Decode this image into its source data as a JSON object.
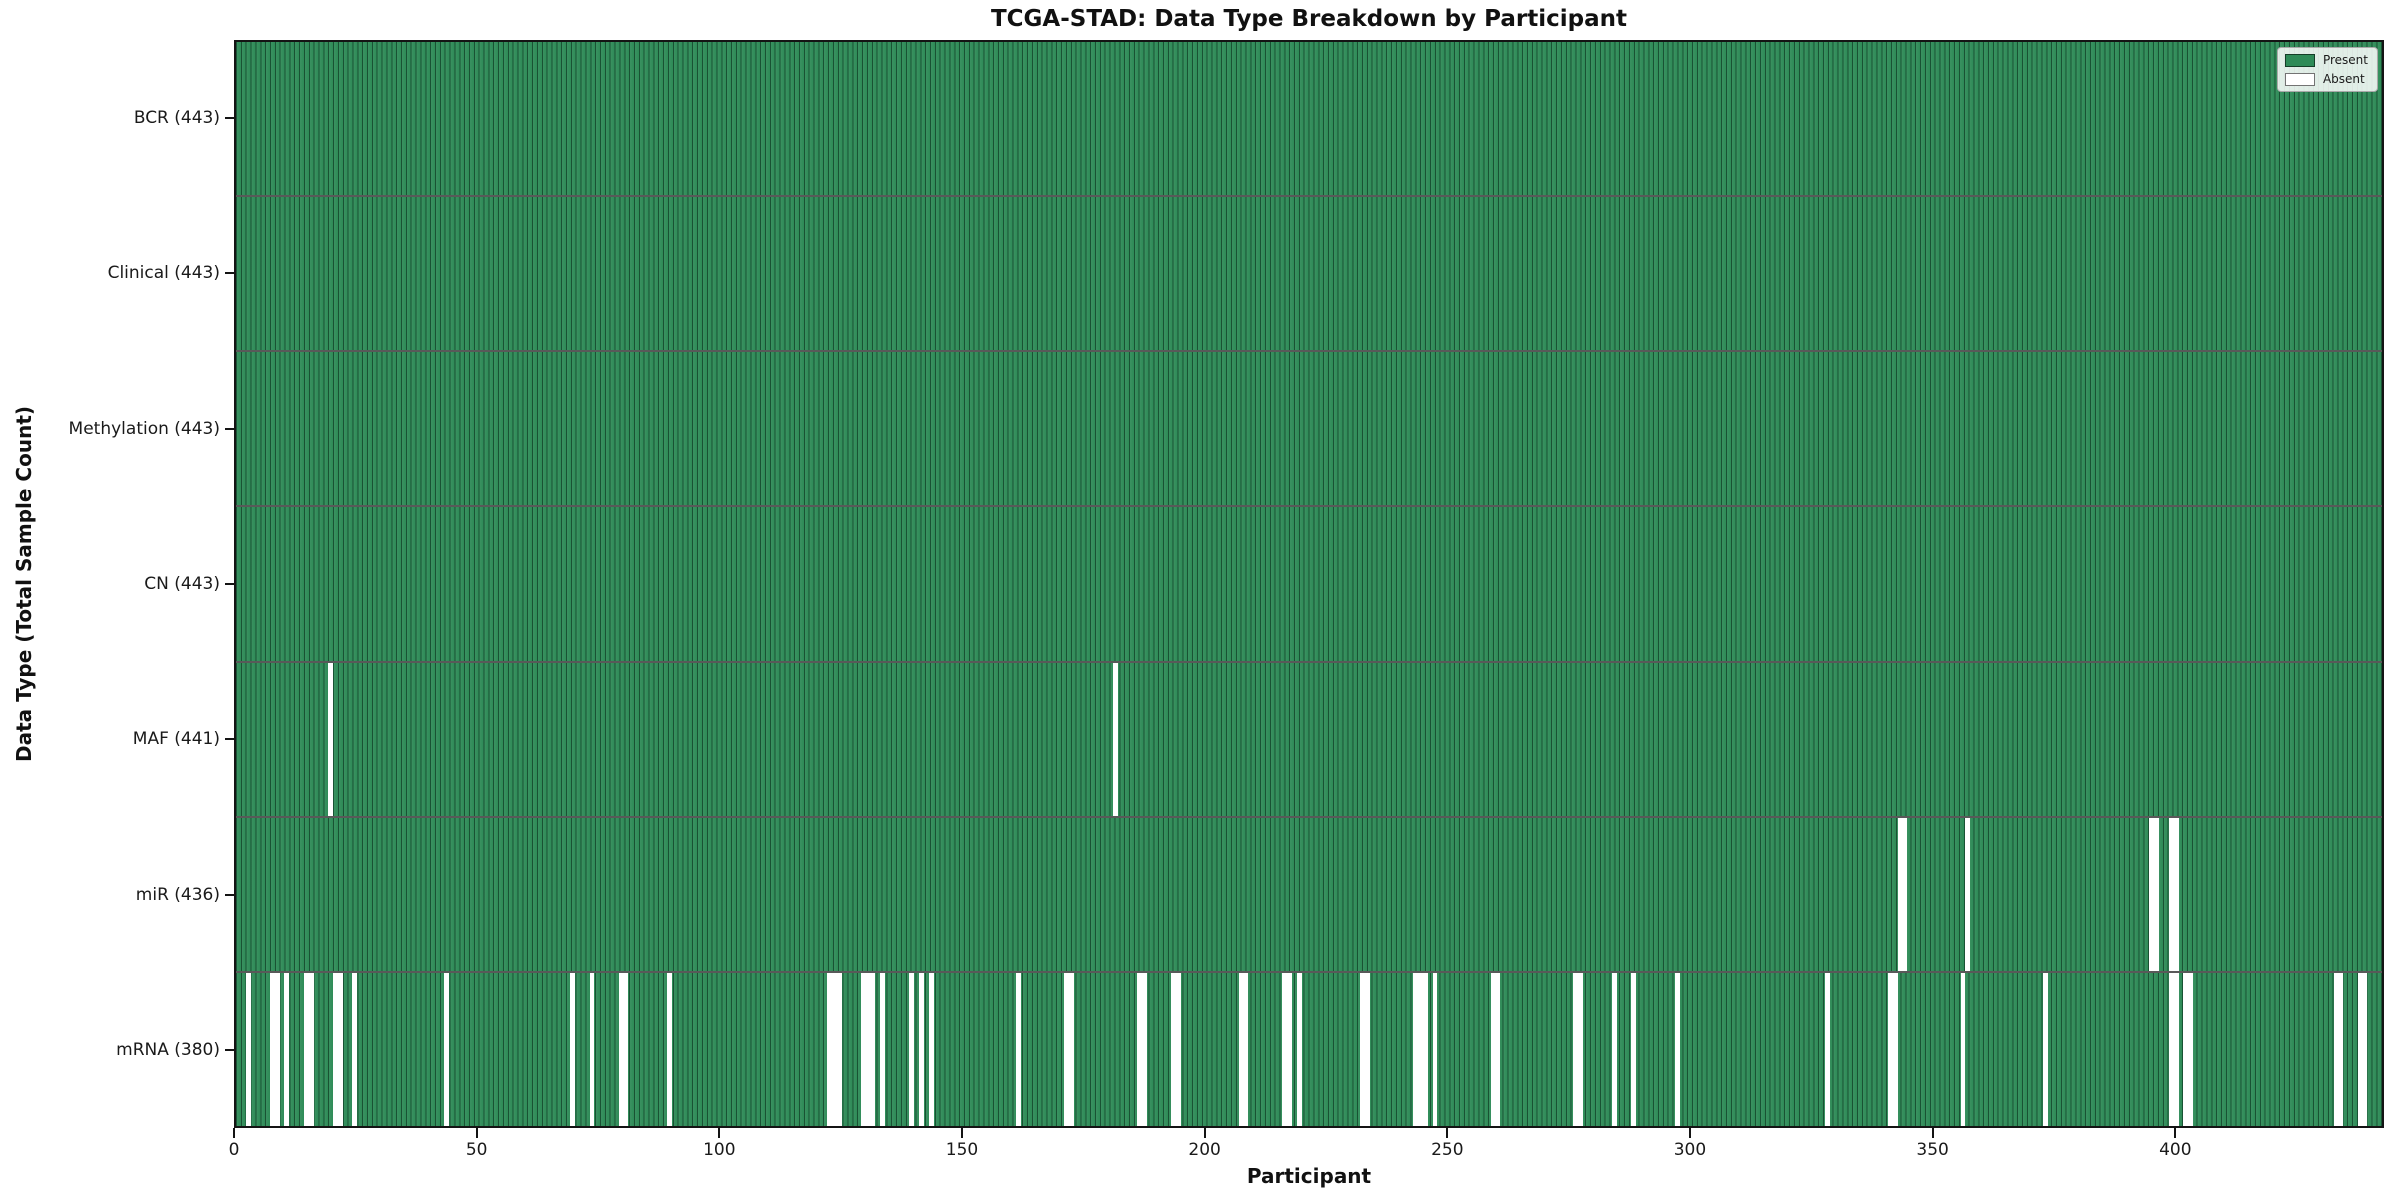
{
  "title": "TCGA-STAD: Data Type Breakdown by Participant",
  "xlabel": "Participant",
  "ylabel": "Data Type (Total Sample Count)",
  "colors": {
    "present": "#2e8b57",
    "absent": "#ffffff",
    "bar_edge": "rgba(8,35,22,0.55)",
    "axis": "#141414",
    "text": "#1a1a1a"
  },
  "chart_data": {
    "type": "heatmap",
    "title": "TCGA-STAD: Data Type Breakdown by Participant",
    "xlabel": "Participant",
    "ylabel": "Data Type (Total Sample Count)",
    "x_range": [
      0,
      443
    ],
    "n_participants": 443,
    "x_ticks": [
      0,
      50,
      100,
      150,
      200,
      250,
      300,
      350,
      400
    ],
    "legend_position": "upper right",
    "legend": [
      {
        "label": "Present",
        "color": "#2e8b57"
      },
      {
        "label": "Absent",
        "color": "#ffffff"
      }
    ],
    "rows": [
      {
        "name": "BCR",
        "label": "BCR (443)",
        "total": 443,
        "absent_indices": []
      },
      {
        "name": "Clinical",
        "label": "Clinical (443)",
        "total": 443,
        "absent_indices": []
      },
      {
        "name": "Methylation",
        "label": "Methylation (443)",
        "total": 443,
        "absent_indices": []
      },
      {
        "name": "CN",
        "label": "CN (443)",
        "total": 443,
        "absent_indices": []
      },
      {
        "name": "MAF",
        "label": "MAF (441)",
        "total": 441,
        "absent_indices": [
          19,
          181
        ]
      },
      {
        "name": "miR",
        "label": "miR (436)",
        "total": 436,
        "absent_indices": [
          343,
          344,
          357,
          395,
          396,
          399,
          400
        ]
      },
      {
        "name": "mRNA",
        "label": "mRNA (380)",
        "total": 380,
        "absent_indices": [
          2,
          7,
          8,
          10,
          14,
          15,
          20,
          21,
          24,
          43,
          69,
          73,
          79,
          80,
          89,
          122,
          123,
          124,
          129,
          130,
          131,
          133,
          139,
          141,
          143,
          161,
          171,
          172,
          186,
          187,
          193,
          194,
          207,
          208,
          216,
          217,
          219,
          232,
          233,
          243,
          244,
          245,
          247,
          259,
          260,
          276,
          277,
          284,
          288,
          297,
          328,
          341,
          342,
          356,
          373,
          399,
          400,
          402,
          403,
          433,
          434,
          438,
          439
        ]
      }
    ]
  }
}
